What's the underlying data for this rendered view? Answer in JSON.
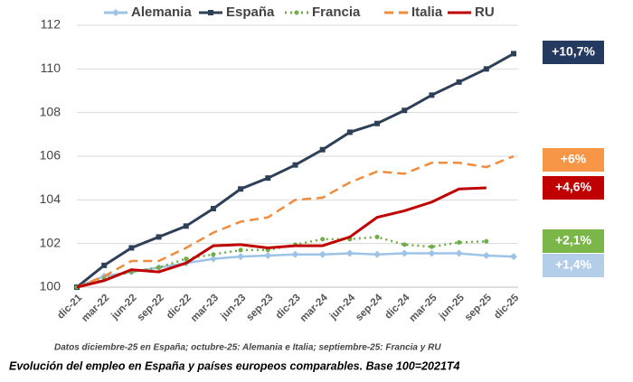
{
  "chart_data": {
    "type": "line",
    "categories": [
      "dic-21",
      "mar-22",
      "jun-22",
      "sep-22",
      "dic-22",
      "mar-23",
      "jun-23",
      "sep-23",
      "dic-23",
      "mar-24",
      "jun-24",
      "sep-24",
      "dic-24",
      "mar-25",
      "jun-25",
      "sep-25",
      "dic-25"
    ],
    "series": [
      {
        "name": "Alemania",
        "color": "#9dc3e6",
        "style": "solid",
        "marker": "diamond",
        "values": [
          100,
          100.5,
          100.7,
          100.9,
          101.1,
          101.3,
          101.4,
          101.45,
          101.5,
          101.5,
          101.55,
          101.5,
          101.55,
          101.55,
          101.55,
          101.45,
          101.4
        ]
      },
      {
        "name": "España",
        "color": "#2e4057",
        "style": "solid",
        "marker": "square",
        "values": [
          100,
          101.0,
          101.8,
          102.3,
          102.8,
          103.6,
          104.5,
          105.0,
          105.6,
          106.3,
          107.1,
          107.5,
          108.1,
          108.8,
          109.4,
          110.0,
          110.7
        ]
      },
      {
        "name": "Francia",
        "color": "#70ad47",
        "style": "dotted",
        "marker": "circle",
        "values": [
          100,
          100.4,
          100.7,
          100.9,
          101.3,
          101.5,
          101.7,
          101.7,
          101.95,
          102.2,
          102.2,
          102.3,
          101.95,
          101.85,
          102.05,
          102.1,
          null
        ]
      },
      {
        "name": "Italia",
        "color": "#f08c3c",
        "style": "dashed",
        "marker": "none",
        "values": [
          100,
          100.5,
          101.2,
          101.2,
          101.8,
          102.5,
          103.0,
          103.2,
          104.0,
          104.1,
          104.8,
          105.3,
          105.2,
          105.7,
          105.7,
          105.5,
          106.0
        ]
      },
      {
        "name": "RU",
        "color": "#c00000",
        "style": "solid",
        "marker": "none",
        "values": [
          100,
          100.3,
          100.8,
          100.7,
          101.1,
          101.9,
          101.95,
          101.8,
          101.9,
          101.9,
          102.3,
          103.2,
          103.5,
          103.9,
          104.5,
          104.55,
          null
        ]
      }
    ],
    "ylim": [
      100,
      112
    ],
    "yticks": [
      100,
      102,
      104,
      106,
      108,
      110,
      112
    ],
    "grid": true,
    "annotations": [
      {
        "text": "+10,7%",
        "color": "#243a5e",
        "value": 10.7
      },
      {
        "text": "+6%",
        "color": "#f79646",
        "value": 6
      },
      {
        "text": "+4,6%",
        "color": "#c00000",
        "value": 4.6
      },
      {
        "text": "+2,1%",
        "color": "#7ab648",
        "value": 2.1
      },
      {
        "text": "+1,4%",
        "color": "#b4cde8",
        "value": 1.4
      }
    ],
    "note": "Datos diciembre-25 en España; octubre-25: Alemania e Italia; septiembre-25: Francia y RU",
    "caption": "Evolución del empleo en España y países europeos comparables. Base 100=2021T4"
  }
}
